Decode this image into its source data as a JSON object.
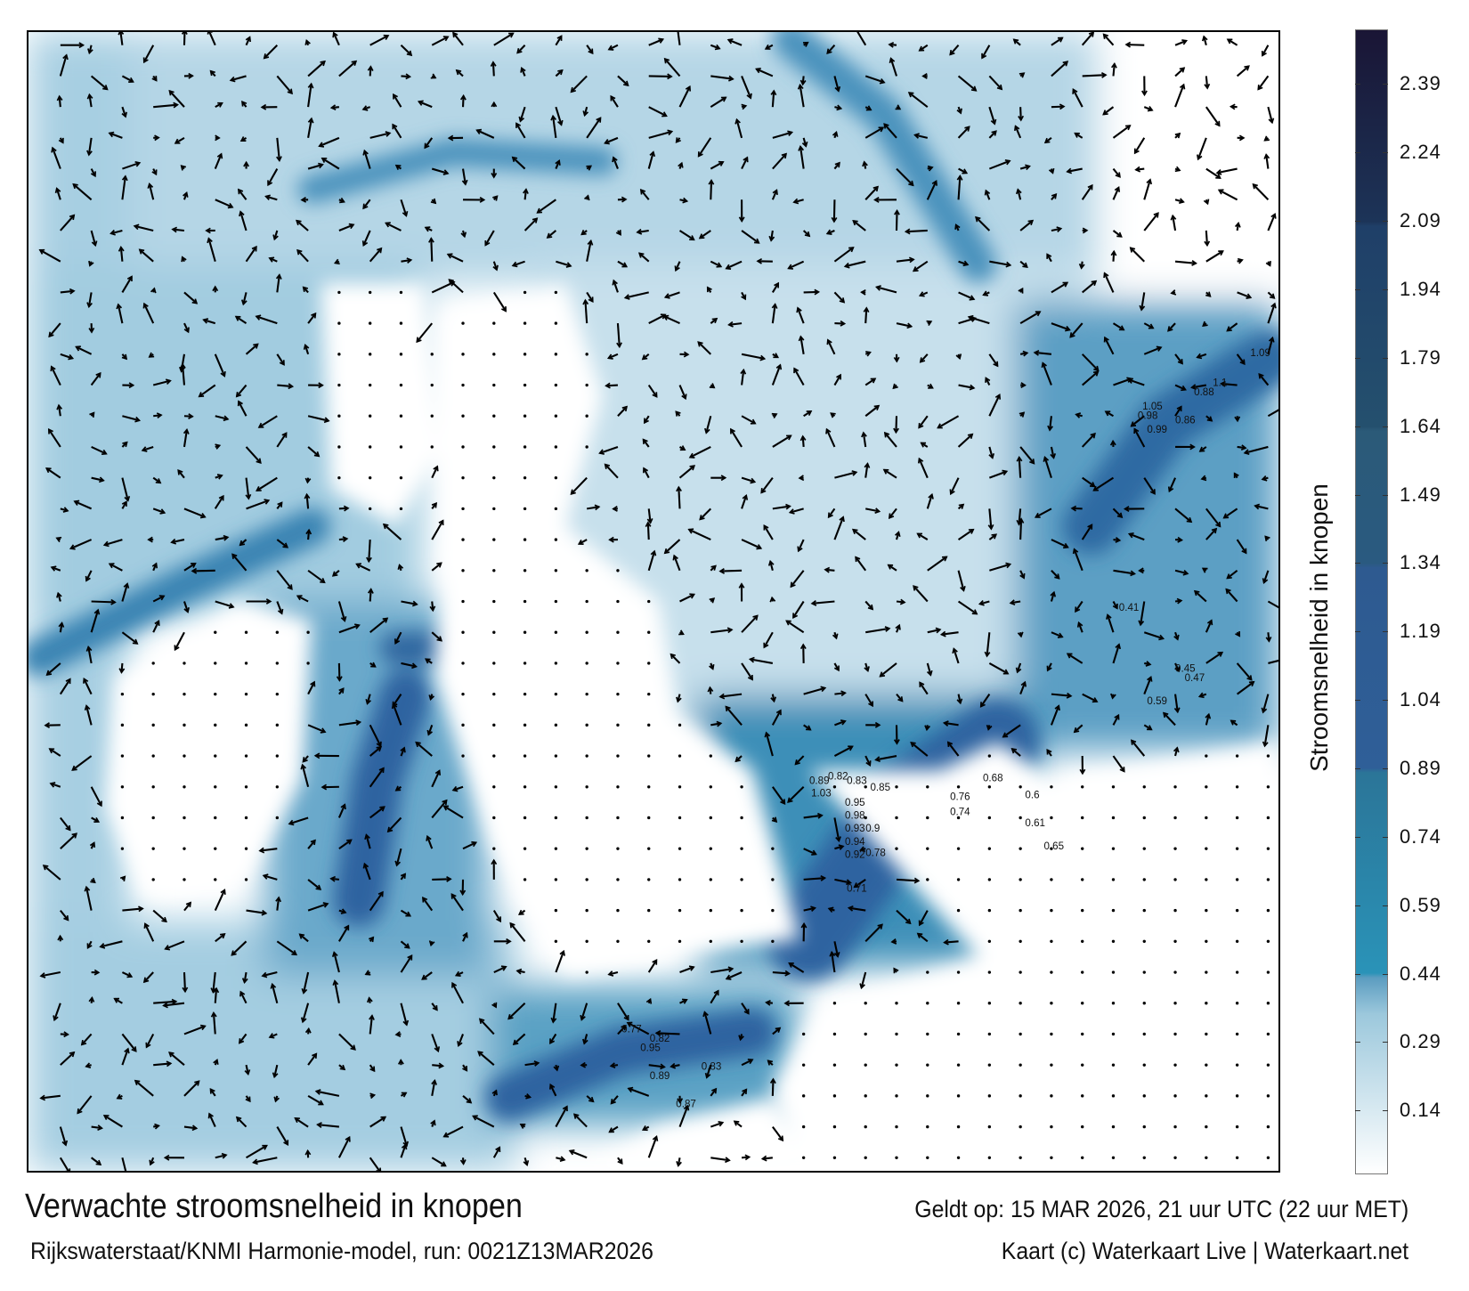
{
  "map": {
    "title": "Verwachte stroomsnelheid in knopen",
    "valid_time": "Geldt op: 15 MAR 2026, 21 uur UTC (22 uur MET)",
    "source": "Rijkswaterstaat/KNMI Harmonie-model, run: 0021Z13MAR2026",
    "credit": "Kaart (c) Waterkaart Live | Waterkaart.net",
    "sample_speed_labels": [
      "0.95",
      "0.98",
      "0.93",
      "0.9",
      "0.94",
      "0.92",
      "0.78",
      "1.03",
      "0.85",
      "0.83",
      "0.89",
      "0.82",
      "0.76",
      "0.74",
      "0.68",
      "0.6",
      "0.61",
      "0.65",
      "1.05",
      "1.09",
      "1.1",
      "0.98",
      "0.88",
      "0.86",
      "0.99",
      "0.89",
      "0.83",
      "0.95",
      "0.87",
      "0.82",
      "0.71",
      "0.77",
      "0.41",
      "0.45",
      "0.59",
      "0.47"
    ]
  },
  "colorbar": {
    "title": "Stroomsnelheid in knopen",
    "ticks": [
      "0.14",
      "0.29",
      "0.44",
      "0.59",
      "0.74",
      "0.89",
      "1.04",
      "1.19",
      "1.34",
      "1.49",
      "1.64",
      "1.79",
      "1.94",
      "2.09",
      "2.24",
      "2.39"
    ],
    "range": [
      0,
      2.51
    ],
    "colors": {
      "min": "#ffffff",
      "low": "#9cc8dc",
      "0.44": "#2a93b8",
      "0.74": "#2b7598",
      "0.89": "#2f5f98",
      "1.34": "#2a5a80",
      "1.64": "#24506e",
      "2.09": "#1c3458",
      "max": "#1a1535"
    }
  }
}
